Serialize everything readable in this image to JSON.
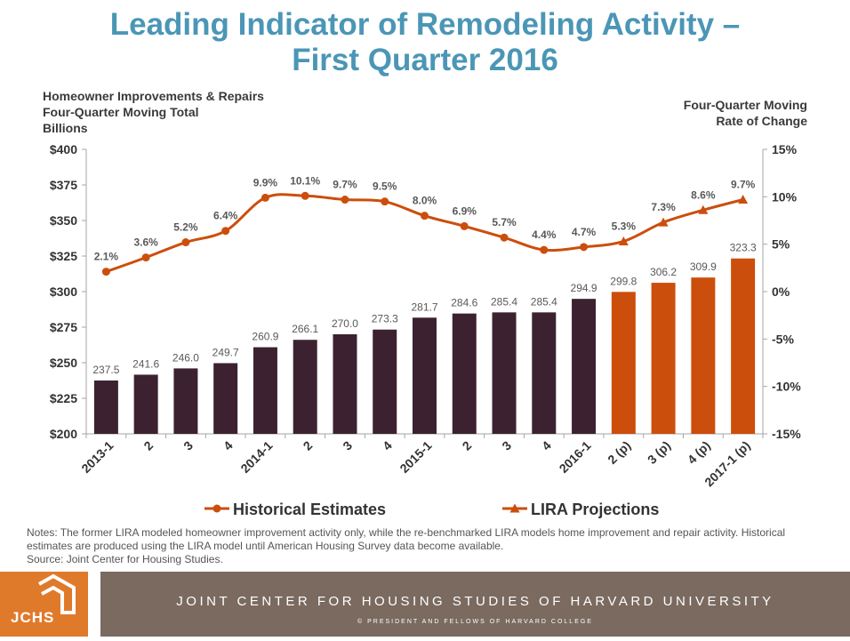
{
  "title_line1": "Leading Indicator of Remodeling Activity –",
  "title_line2": "First Quarter 2016",
  "left_axis_title": [
    "Homeowner Improvements & Repairs",
    "Four-Quarter Moving Total",
    "Billions"
  ],
  "right_axis_title": [
    "Four-Quarter Moving",
    "Rate of Change"
  ],
  "colors": {
    "title": "#4b96b6",
    "historical_bar": "#3c2230",
    "projection_bar": "#cc4e0c",
    "line": "#cc4e0c",
    "grid": "#d9d9d9"
  },
  "chart_data": {
    "type": "bar",
    "categories": [
      "2013-1",
      "2",
      "3",
      "4",
      "2014-1",
      "2",
      "3",
      "4",
      "2015-1",
      "2",
      "3",
      "4",
      "2016-1",
      "2 (p)",
      "3 (p)",
      "4 (p)",
      "2017-1 (p)"
    ],
    "bar_values": [
      237.5,
      241.6,
      246.0,
      249.7,
      260.9,
      266.1,
      270.0,
      273.3,
      281.7,
      284.6,
      285.4,
      285.4,
      294.9,
      299.8,
      306.2,
      309.9,
      323.3
    ],
    "bar_labels": [
      "237.5",
      "241.6",
      "246.0",
      "249.7",
      "260.9",
      "266.1",
      "270.0",
      "273.3",
      "281.7",
      "284.6",
      "285.4",
      "285.4",
      "294.9",
      "299.8",
      "306.2",
      "309.9",
      "323.3"
    ],
    "projection_start_index": 13,
    "rate_values": [
      2.1,
      3.6,
      5.2,
      6.4,
      9.9,
      10.1,
      9.7,
      9.5,
      8.0,
      6.9,
      5.7,
      4.4,
      4.7,
      5.3,
      7.3,
      8.6,
      9.7
    ],
    "rate_labels": [
      "2.1%",
      "3.6%",
      "5.2%",
      "6.4%",
      "9.9%",
      "10.1%",
      "9.7%",
      "9.5%",
      "8.0%",
      "6.9%",
      "5.7%",
      "4.4%",
      "4.7%",
      "5.3%",
      "7.3%",
      "8.6%",
      "9.7%"
    ],
    "left_ylim": [
      200,
      400
    ],
    "left_ticks": [
      "$200",
      "$225",
      "$250",
      "$275",
      "$300",
      "$325",
      "$350",
      "$375",
      "$400"
    ],
    "right_ylim": [
      -15,
      15
    ],
    "right_ticks": [
      "-15%",
      "-10%",
      "-5%",
      "0%",
      "5%",
      "10%",
      "15%"
    ],
    "legend": [
      {
        "name": "Historical Estimates",
        "marker": "circle"
      },
      {
        "name": "LIRA Projections",
        "marker": "triangle"
      }
    ],
    "legend_position": "bottom",
    "grid": false
  },
  "notes": [
    "Notes: The former LIRA modeled homeowner improvement activity only, while the re-benchmarked LIRA models home improvement and repair activity. Historical estimates are produced using the LIRA model until American Housing Survey data become available.",
    "Source: Joint Center for Housing Studies."
  ],
  "footer": {
    "logo_text": "JCHS",
    "main_text": "JOINT CENTER FOR HOUSING STUDIES OF HARVARD UNIVERSITY",
    "sub_text": "© PRESIDENT AND FELLOWS OF HARVARD COLLEGE"
  }
}
